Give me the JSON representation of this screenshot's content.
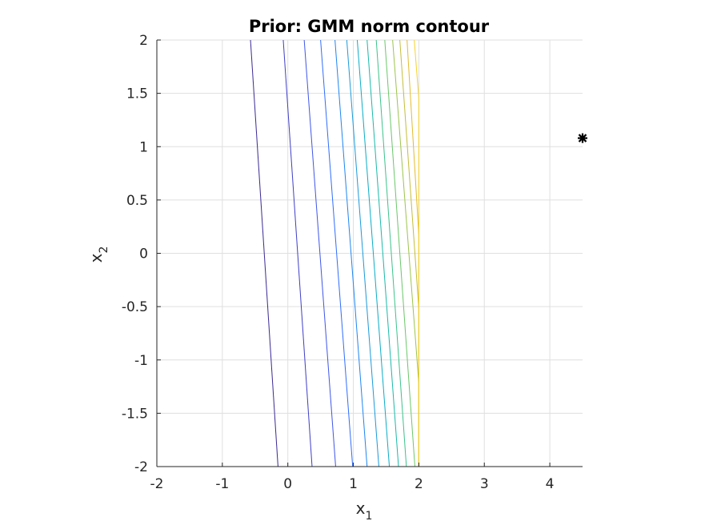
{
  "chart_data": {
    "type": "contour",
    "title": "Prior: GMM norm contour",
    "xlabel": {
      "base": "x",
      "sub": "1"
    },
    "ylabel": {
      "base": "x",
      "sub": "2"
    },
    "xlim": [
      -2,
      4.5
    ],
    "ylim": [
      -2,
      2
    ],
    "x_ticks": [
      -2,
      -1,
      0,
      1,
      2,
      3,
      4
    ],
    "x_tick_labels": [
      "-2",
      "-1",
      "0",
      "1",
      "2",
      "3",
      "4"
    ],
    "y_ticks": [
      -2,
      -1.5,
      -1,
      -0.5,
      0,
      0.5,
      1,
      1.5,
      2
    ],
    "y_tick_labels": [
      "-2",
      "-1.5",
      "-1",
      "-0.5",
      "0",
      "0.5",
      "1",
      "1.5",
      "2"
    ],
    "grid": true,
    "contour_levels": [
      {
        "x_at_ymin": -0.15,
        "x_at_ymax": -0.57,
        "color": "#3a2a93"
      },
      {
        "x_at_ymin": 0.37,
        "x_at_ymax": -0.07,
        "color": "#3f3fc6"
      },
      {
        "x_at_ymin": 0.73,
        "x_at_ymax": 0.25,
        "color": "#3f56e8"
      },
      {
        "x_at_ymin": 0.99,
        "x_at_ymax": 0.5,
        "color": "#2f6dfa"
      },
      {
        "x_at_ymin": 1.21,
        "x_at_ymax": 0.72,
        "color": "#1e85f0"
      },
      {
        "x_at_ymin": 1.39,
        "x_at_ymax": 0.9,
        "color": "#1a9ad9"
      },
      {
        "x_at_ymin": 1.55,
        "x_at_ymax": 1.06,
        "color": "#0aacc5"
      },
      {
        "x_at_ymin": 1.69,
        "x_at_ymax": 1.21,
        "color": "#1ab9a9"
      },
      {
        "x_at_ymin": 1.81,
        "x_at_ymax": 1.35,
        "color": "#3cc28b"
      },
      {
        "x_at_ymin": 1.94,
        "x_at_ymax": 1.48,
        "color": "#6bc66a"
      },
      {
        "x_at_ymin": 2.0,
        "x_at_ymax": 1.6,
        "y_end": -1.22,
        "color": "#9dc44b"
      },
      {
        "x_at_ymin": 2.0,
        "x_at_ymax": 1.71,
        "y_end": -0.52,
        "color": "#c4bd3a"
      },
      {
        "x_at_ymin": 2.0,
        "x_at_ymax": 1.82,
        "y_end": 0.17,
        "color": "#e3bb2e"
      },
      {
        "x_at_ymin": 2.0,
        "x_at_ymax": 1.93,
        "y_end": 1.45,
        "color": "#f6d32a"
      }
    ],
    "points": [
      {
        "x": 4.5,
        "y": 1.08,
        "marker": "star",
        "color": "#000000"
      }
    ]
  }
}
